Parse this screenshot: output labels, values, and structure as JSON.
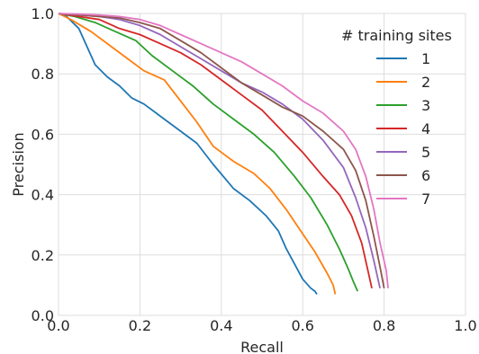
{
  "chart_data": {
    "type": "line",
    "xlabel": "Recall",
    "ylabel": "Precision",
    "xlim": [
      0,
      1
    ],
    "ylim": [
      0,
      1
    ],
    "xticks": [
      "0.0",
      "0.2",
      "0.4",
      "0.6",
      "0.8",
      "1.0"
    ],
    "yticks": [
      "0.0",
      "0.2",
      "0.4",
      "0.6",
      "0.8",
      "1.0"
    ],
    "grid": true,
    "legend": {
      "title": "# training sites",
      "placement": "top-right"
    },
    "series": [
      {
        "name": "1",
        "color": "#1f77b4",
        "x": [
          0.0,
          0.02,
          0.05,
          0.09,
          0.12,
          0.15,
          0.18,
          0.21,
          0.24,
          0.26,
          0.3,
          0.34,
          0.38,
          0.43,
          0.47,
          0.51,
          0.54,
          0.56,
          0.58,
          0.6,
          0.62,
          0.63,
          0.635
        ],
        "y": [
          1.0,
          0.99,
          0.95,
          0.83,
          0.79,
          0.76,
          0.72,
          0.7,
          0.67,
          0.65,
          0.61,
          0.57,
          0.5,
          0.42,
          0.38,
          0.33,
          0.28,
          0.22,
          0.17,
          0.12,
          0.09,
          0.08,
          0.07
        ]
      },
      {
        "name": "2",
        "color": "#ff7f0e",
        "x": [
          0.0,
          0.03,
          0.08,
          0.13,
          0.17,
          0.21,
          0.26,
          0.3,
          0.34,
          0.38,
          0.43,
          0.48,
          0.52,
          0.56,
          0.6,
          0.63,
          0.66,
          0.675,
          0.68
        ],
        "y": [
          1.0,
          0.98,
          0.94,
          0.89,
          0.85,
          0.81,
          0.78,
          0.71,
          0.64,
          0.56,
          0.51,
          0.47,
          0.42,
          0.35,
          0.27,
          0.21,
          0.14,
          0.1,
          0.07
        ]
      },
      {
        "name": "3",
        "color": "#2ca02c",
        "x": [
          0.0,
          0.04,
          0.09,
          0.14,
          0.19,
          0.23,
          0.28,
          0.33,
          0.38,
          0.43,
          0.48,
          0.53,
          0.58,
          0.62,
          0.66,
          0.69,
          0.71,
          0.725,
          0.735
        ],
        "y": [
          1.0,
          0.99,
          0.97,
          0.94,
          0.91,
          0.86,
          0.81,
          0.76,
          0.7,
          0.65,
          0.6,
          0.54,
          0.46,
          0.39,
          0.3,
          0.22,
          0.16,
          0.11,
          0.08
        ]
      },
      {
        "name": "4",
        "color": "#d62728",
        "x": [
          0.0,
          0.05,
          0.1,
          0.15,
          0.2,
          0.25,
          0.3,
          0.35,
          0.4,
          0.45,
          0.5,
          0.55,
          0.6,
          0.65,
          0.69,
          0.72,
          0.745,
          0.76,
          0.77
        ],
        "y": [
          1.0,
          0.99,
          0.98,
          0.95,
          0.93,
          0.9,
          0.87,
          0.83,
          0.78,
          0.73,
          0.68,
          0.61,
          0.54,
          0.46,
          0.4,
          0.33,
          0.24,
          0.15,
          0.09
        ]
      },
      {
        "name": "5",
        "color": "#9467bd",
        "x": [
          0.0,
          0.05,
          0.1,
          0.15,
          0.2,
          0.25,
          0.3,
          0.35,
          0.4,
          0.45,
          0.5,
          0.55,
          0.6,
          0.65,
          0.7,
          0.73,
          0.755,
          0.775,
          0.79
        ],
        "y": [
          1.0,
          0.995,
          0.99,
          0.98,
          0.96,
          0.93,
          0.89,
          0.85,
          0.81,
          0.77,
          0.74,
          0.7,
          0.65,
          0.58,
          0.49,
          0.39,
          0.29,
          0.18,
          0.09
        ]
      },
      {
        "name": "6",
        "color": "#8c564b",
        "x": [
          0.0,
          0.05,
          0.1,
          0.15,
          0.2,
          0.25,
          0.3,
          0.35,
          0.4,
          0.45,
          0.5,
          0.55,
          0.6,
          0.65,
          0.7,
          0.73,
          0.755,
          0.775,
          0.79,
          0.8
        ],
        "y": [
          1.0,
          0.995,
          0.99,
          0.985,
          0.97,
          0.95,
          0.91,
          0.87,
          0.82,
          0.77,
          0.73,
          0.69,
          0.66,
          0.61,
          0.55,
          0.48,
          0.38,
          0.26,
          0.16,
          0.09
        ]
      },
      {
        "name": "7",
        "color": "#e377c2",
        "x": [
          0.0,
          0.05,
          0.1,
          0.15,
          0.2,
          0.25,
          0.3,
          0.35,
          0.4,
          0.45,
          0.5,
          0.55,
          0.6,
          0.65,
          0.7,
          0.73,
          0.755,
          0.775,
          0.79,
          0.805,
          0.81
        ],
        "y": [
          1.0,
          0.998,
          0.995,
          0.99,
          0.98,
          0.96,
          0.93,
          0.9,
          0.87,
          0.84,
          0.8,
          0.76,
          0.71,
          0.67,
          0.61,
          0.55,
          0.46,
          0.35,
          0.24,
          0.15,
          0.09
        ]
      }
    ]
  }
}
